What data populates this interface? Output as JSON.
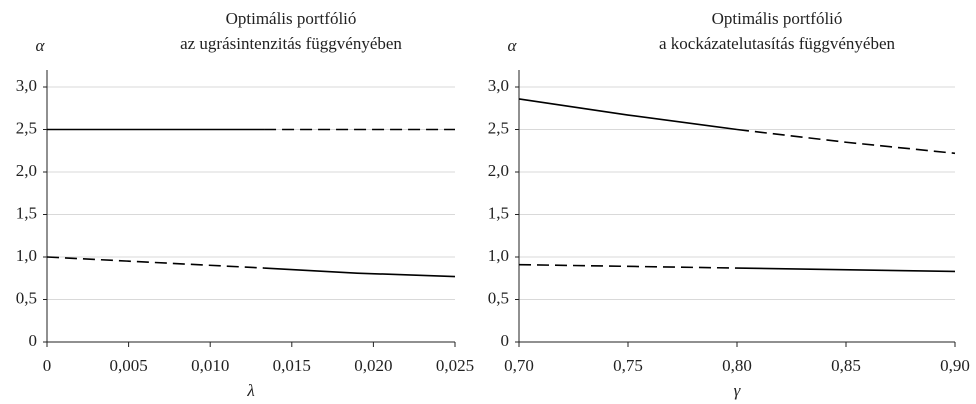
{
  "chart_data": [
    {
      "type": "line",
      "title": [
        "Optimális portfólió",
        "az ugrásintenzitás függvényében"
      ],
      "y_label": "α",
      "x_label": "λ",
      "xlim": [
        0,
        0.025
      ],
      "ylim": [
        0,
        3.2
      ],
      "xticks": [
        0,
        {
          "value": 0.005,
          "label": "0,005"
        },
        {
          "value": 0.01,
          "label": "0,010"
        },
        {
          "value": 0.015,
          "label": "0,015"
        },
        {
          "value": 0.02,
          "label": "0,020"
        },
        {
          "value": 0.025,
          "label": "0,025"
        }
      ],
      "yticks": [
        0,
        {
          "value": 0.5,
          "label": "0,5"
        },
        {
          "value": 1,
          "label": "1,0"
        },
        {
          "value": 1.5,
          "label": "1,5"
        },
        {
          "value": 2,
          "label": "2,0"
        },
        {
          "value": 2.5,
          "label": "2,5"
        },
        {
          "value": 3,
          "label": "3,0"
        }
      ],
      "grid": true,
      "series": [
        {
          "color": "#000000",
          "dashed": false,
          "x": [
            0,
            0.0133
          ],
          "values": [
            2.5,
            2.5
          ]
        },
        {
          "color": "#000000",
          "dashed": true,
          "x": [
            0.0133,
            0.025
          ],
          "values": [
            2.5,
            2.5
          ]
        },
        {
          "color": "#000000",
          "dashed": true,
          "x": [
            0,
            0.0133
          ],
          "values": [
            1.0,
            0.87
          ]
        },
        {
          "color": "#000000",
          "dashed": false,
          "x": [
            0.0133,
            0.019,
            0.025
          ],
          "values": [
            0.87,
            0.81,
            0.77
          ]
        }
      ]
    },
    {
      "type": "line",
      "title": [
        "Optimális portfólió",
        "a kockázatelutasítás függvényében"
      ],
      "y_label": "α",
      "x_label": "γ",
      "xlim": [
        0.7,
        0.9
      ],
      "ylim": [
        0,
        3.2
      ],
      "xticks": [
        {
          "value": 0.7,
          "label": "0,70"
        },
        {
          "value": 0.75,
          "label": "0,75"
        },
        {
          "value": 0.8,
          "label": "0,80"
        },
        {
          "value": 0.85,
          "label": "0,85"
        },
        {
          "value": 0.9,
          "label": "0,90"
        }
      ],
      "yticks": [
        0,
        {
          "value": 0.5,
          "label": "0,5"
        },
        {
          "value": 1,
          "label": "1,0"
        },
        {
          "value": 1.5,
          "label": "1,5"
        },
        {
          "value": 2,
          "label": "2,0"
        },
        {
          "value": 2.5,
          "label": "2,5"
        },
        {
          "value": 3,
          "label": "3,0"
        }
      ],
      "grid": true,
      "series": [
        {
          "color": "#000000",
          "dashed": false,
          "x": [
            0.7,
            0.75,
            0.8
          ],
          "values": [
            2.86,
            2.67,
            2.5
          ]
        },
        {
          "color": "#000000",
          "dashed": true,
          "x": [
            0.8,
            0.85,
            0.9
          ],
          "values": [
            2.5,
            2.35,
            2.22
          ]
        },
        {
          "color": "#000000",
          "dashed": true,
          "x": [
            0.7,
            0.8
          ],
          "values": [
            0.91,
            0.87
          ]
        },
        {
          "color": "#000000",
          "dashed": false,
          "x": [
            0.8,
            0.9
          ],
          "values": [
            0.87,
            0.83
          ]
        }
      ]
    }
  ]
}
